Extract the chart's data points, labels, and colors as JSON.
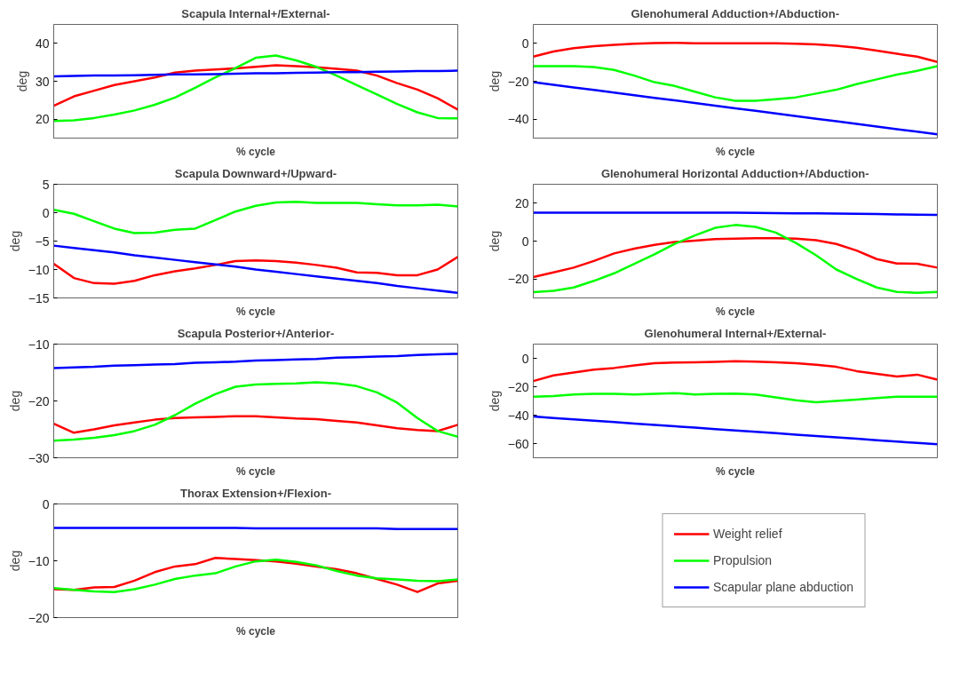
{
  "chart_data": [
    {
      "type": "line",
      "title": "Scapula Internal+/External-",
      "xlabel": "% cycle",
      "ylabel": "deg",
      "categories": [
        null,
        null,
        null,
        null,
        null,
        null,
        null,
        null,
        null,
        null,
        null,
        null,
        null,
        null,
        null,
        null,
        null,
        null,
        null,
        null,
        null
      ],
      "ylim": [
        15,
        45
      ],
      "yticks": [
        20,
        30,
        40
      ],
      "grid": false,
      "tick_labels": "y",
      "series": [
        {
          "color": "#ff0000",
          "values": [
            23.5,
            26,
            27.5,
            29,
            30,
            31,
            32.3,
            32.8,
            33.1,
            33.4,
            33.8,
            34.2,
            34,
            33.7,
            33.3,
            32.8,
            31.5,
            29.5,
            27.8,
            25.5,
            22.5
          ]
        },
        {
          "color": "#00ff00",
          "values": [
            19.5,
            19.7,
            20.3,
            21.2,
            22.3,
            23.8,
            25.7,
            28.3,
            31,
            33.5,
            36.2,
            36.8,
            35.5,
            33.8,
            31.5,
            29,
            26.5,
            24,
            21.8,
            20.3,
            20.2
          ]
        },
        {
          "color": "#0000ff",
          "values": [
            31.3,
            31.4,
            31.5,
            31.5,
            31.6,
            31.7,
            31.8,
            31.8,
            31.9,
            32.0,
            32.1,
            32.1,
            32.2,
            32.3,
            32.4,
            32.4,
            32.5,
            32.6,
            32.7,
            32.7,
            32.8
          ]
        }
      ]
    },
    {
      "type": "line",
      "title": "Glenohumeral Adduction+/Abduction-",
      "xlabel": "% cycle",
      "ylabel": "deg",
      "categories": [
        null,
        null,
        null,
        null,
        null,
        null,
        null,
        null,
        null,
        null,
        null,
        null,
        null,
        null,
        null,
        null,
        null,
        null,
        null,
        null,
        null
      ],
      "ylim": [
        -50,
        10
      ],
      "yticks": [
        -40,
        -20,
        0
      ],
      "grid": false,
      "tick_labels": "y",
      "series": [
        {
          "color": "#ff0000",
          "values": [
            -7,
            -4.3,
            -2.5,
            -1.5,
            -0.8,
            -0.2,
            0.2,
            0.3,
            0,
            0,
            0,
            0,
            0,
            -0.2,
            -0.6,
            -1.3,
            -2.3,
            -3.8,
            -5.5,
            -7,
            -9.8
          ]
        },
        {
          "color": "#00ff00",
          "values": [
            -12,
            -12,
            -12,
            -12.5,
            -14,
            -17,
            -20.5,
            -22.5,
            -25.5,
            -28.5,
            -30.3,
            -30.3,
            -29.5,
            -28.5,
            -26.5,
            -24.5,
            -21.5,
            -19,
            -16.5,
            -14.5,
            -12
          ]
        },
        {
          "color": "#0000ff",
          "values": [
            -20.5,
            -21.9,
            -23.3,
            -24.6,
            -26.0,
            -27.4,
            -28.8,
            -30.1,
            -31.5,
            -32.9,
            -34.3,
            -35.6,
            -37.0,
            -38.4,
            -39.8,
            -41.1,
            -42.5,
            -43.9,
            -45.3,
            -46.6,
            -48.0
          ]
        }
      ]
    },
    {
      "type": "line",
      "title": "Scapula Downward+/Upward-",
      "xlabel": "% cycle",
      "ylabel": "deg",
      "categories": [
        null,
        null,
        null,
        null,
        null,
        null,
        null,
        null,
        null,
        null,
        null,
        null,
        null,
        null,
        null,
        null,
        null,
        null,
        null,
        null,
        null
      ],
      "ylim": [
        -15,
        5
      ],
      "yticks": [
        -15,
        -10,
        -5,
        0,
        5
      ],
      "grid": false,
      "tick_labels": "y",
      "series": [
        {
          "color": "#ff0000",
          "values": [
            -9,
            -11.5,
            -12.4,
            -12.5,
            -12,
            -11,
            -10.3,
            -9.8,
            -9.2,
            -8.5,
            -8.4,
            -8.5,
            -8.8,
            -9.2,
            -9.7,
            -10.5,
            -10.6,
            -11,
            -11,
            -10,
            -7.8
          ]
        },
        {
          "color": "#00ff00",
          "values": [
            0.5,
            -0.2,
            -1.5,
            -2.8,
            -3.6,
            -3.5,
            -3,
            -2.8,
            -1.3,
            0.2,
            1.2,
            1.8,
            1.9,
            1.7,
            1.7,
            1.7,
            1.5,
            1.3,
            1.3,
            1.4,
            1.1
          ]
        },
        {
          "color": "#0000ff",
          "values": [
            -5.8,
            -6.2,
            -6.6,
            -7.0,
            -7.5,
            -7.9,
            -8.3,
            -8.7,
            -9.1,
            -9.5,
            -10.0,
            -10.4,
            -10.8,
            -11.2,
            -11.6,
            -12.0,
            -12.4,
            -12.9,
            -13.3,
            -13.7,
            -14.1
          ]
        }
      ]
    },
    {
      "type": "line",
      "title": "Glenohumeral Horizontal Adduction+/Abduction-",
      "xlabel": "% cycle",
      "ylabel": "deg",
      "categories": [
        null,
        null,
        null,
        null,
        null,
        null,
        null,
        null,
        null,
        null,
        null,
        null,
        null,
        null,
        null,
        null,
        null,
        null,
        null,
        null,
        null
      ],
      "ylim": [
        -30,
        30
      ],
      "yticks": [
        -20,
        0,
        20
      ],
      "grid": false,
      "tick_labels": "y",
      "series": [
        {
          "color": "#ff0000",
          "values": [
            -19,
            -16.5,
            -14,
            -10.5,
            -6.5,
            -4,
            -2,
            -0.5,
            0.2,
            1,
            1.3,
            1.5,
            1.5,
            1.3,
            0.5,
            -1.5,
            -5,
            -9.5,
            -11.8,
            -12,
            -14
          ]
        },
        {
          "color": "#00ff00",
          "values": [
            -27,
            -26.3,
            -24.5,
            -21,
            -17,
            -12,
            -7,
            -1.5,
            3,
            7,
            8.5,
            7.5,
            4.5,
            -1,
            -7.5,
            -15,
            -20,
            -24.5,
            -26.8,
            -27.3,
            -26.8
          ]
        },
        {
          "color": "#0000ff",
          "values": [
            15,
            15,
            15,
            15,
            15,
            15,
            15,
            15,
            15,
            15,
            15,
            14.9,
            14.8,
            14.7,
            14.6,
            14.5,
            14.4,
            14.3,
            14.1,
            14,
            13.8
          ]
        }
      ]
    },
    {
      "type": "line",
      "title": "Scapula Posterior+/Anterior-",
      "xlabel": "% cycle",
      "ylabel": "deg",
      "categories": [
        null,
        null,
        null,
        null,
        null,
        null,
        null,
        null,
        null,
        null,
        null,
        null,
        null,
        null,
        null,
        null,
        null,
        null,
        null,
        null,
        null
      ],
      "ylim": [
        -30,
        -10
      ],
      "yticks": [
        -30,
        -20,
        -10
      ],
      "grid": false,
      "tick_labels": "y",
      "series": [
        {
          "color": "#ff0000",
          "values": [
            -24,
            -25.6,
            -25,
            -24.3,
            -23.8,
            -23.3,
            -23,
            -22.9,
            -22.8,
            -22.7,
            -22.7,
            -22.9,
            -23.1,
            -23.2,
            -23.5,
            -23.8,
            -24.3,
            -24.8,
            -25.1,
            -25.3,
            -24.2
          ]
        },
        {
          "color": "#00ff00",
          "values": [
            -27,
            -26.8,
            -26.5,
            -26,
            -25.3,
            -24.2,
            -22.5,
            -20.5,
            -18.8,
            -17.5,
            -17.1,
            -17,
            -16.9,
            -16.7,
            -16.9,
            -17.4,
            -18.5,
            -20.3,
            -23,
            -25.3,
            -26.3
          ]
        },
        {
          "color": "#0000ff",
          "values": [
            -14.2,
            -14.1,
            -14.0,
            -13.8,
            -13.7,
            -13.6,
            -13.5,
            -13.3,
            -13.2,
            -13.1,
            -12.9,
            -12.8,
            -12.7,
            -12.6,
            -12.4,
            -12.3,
            -12.2,
            -12.1,
            -11.9,
            -11.8,
            -11.7
          ]
        }
      ]
    },
    {
      "type": "line",
      "title": "Glenohumeral Internal+/External-",
      "xlabel": "% cycle",
      "ylabel": "deg",
      "categories": [
        null,
        null,
        null,
        null,
        null,
        null,
        null,
        null,
        null,
        null,
        null,
        null,
        null,
        null,
        null,
        null,
        null,
        null,
        null,
        null,
        null
      ],
      "ylim": [
        -70,
        10
      ],
      "yticks": [
        -60,
        -40,
        -20,
        0
      ],
      "grid": false,
      "tick_labels": "y",
      "series": [
        {
          "color": "#ff0000",
          "values": [
            -16,
            -12,
            -10,
            -8,
            -6.8,
            -5,
            -3.5,
            -3,
            -2.8,
            -2.5,
            -2,
            -2.3,
            -2.8,
            -3.5,
            -4.5,
            -6,
            -9,
            -11,
            -12.8,
            -11.5,
            -15
          ]
        },
        {
          "color": "#00ff00",
          "values": [
            -27,
            -26.5,
            -25.5,
            -25,
            -25,
            -25.5,
            -25,
            -24.5,
            -25.5,
            -25,
            -24.8,
            -25.5,
            -27.5,
            -29.5,
            -31,
            -30,
            -29,
            -28,
            -27,
            -27,
            -27
          ]
        },
        {
          "color": "#0000ff",
          "values": [
            -41,
            -42,
            -43,
            -43.9,
            -44.9,
            -45.9,
            -46.9,
            -47.8,
            -48.8,
            -49.8,
            -50.8,
            -51.7,
            -52.7,
            -53.7,
            -54.7,
            -55.6,
            -56.6,
            -57.6,
            -58.6,
            -59.5,
            -60.5
          ]
        }
      ]
    },
    {
      "type": "line",
      "title": "Thorax Extension+/Flexion-",
      "xlabel": "% cycle",
      "ylabel": "deg",
      "categories": [
        null,
        null,
        null,
        null,
        null,
        null,
        null,
        null,
        null,
        null,
        null,
        null,
        null,
        null,
        null,
        null,
        null,
        null,
        null,
        null,
        null
      ],
      "ylim": [
        -20,
        0
      ],
      "yticks": [
        -20,
        -10,
        0
      ],
      "grid": false,
      "legend": "right",
      "tick_labels": "y",
      "series": [
        {
          "name": "Weight relief",
          "color": "#ff0000",
          "values": [
            -15,
            -15.1,
            -14.7,
            -14.6,
            -13.5,
            -12,
            -11,
            -10.6,
            -9.5,
            -9.7,
            -9.9,
            -10.1,
            -10.5,
            -11,
            -11.5,
            -12.2,
            -13.2,
            -14.2,
            -15.5,
            -14,
            -13.5
          ]
        },
        {
          "name": "Propulsion",
          "color": "#00ff00",
          "values": [
            -14.8,
            -15.1,
            -15.4,
            -15.5,
            -15,
            -14.2,
            -13.2,
            -12.6,
            -12.2,
            -11,
            -10.1,
            -9.8,
            -10.2,
            -10.8,
            -11.8,
            -12.6,
            -13.1,
            -13.3,
            -13.5,
            -13.6,
            -13.3
          ]
        },
        {
          "name": "Scapular plane abduction",
          "color": "#0000ff",
          "values": [
            -4.2,
            -4.2,
            -4.2,
            -4.2,
            -4.2,
            -4.2,
            -4.2,
            -4.2,
            -4.2,
            -4.2,
            -4.3,
            -4.3,
            -4.3,
            -4.3,
            -4.3,
            -4.3,
            -4.3,
            -4.4,
            -4.4,
            -4.4,
            -4.4
          ]
        }
      ]
    }
  ]
}
